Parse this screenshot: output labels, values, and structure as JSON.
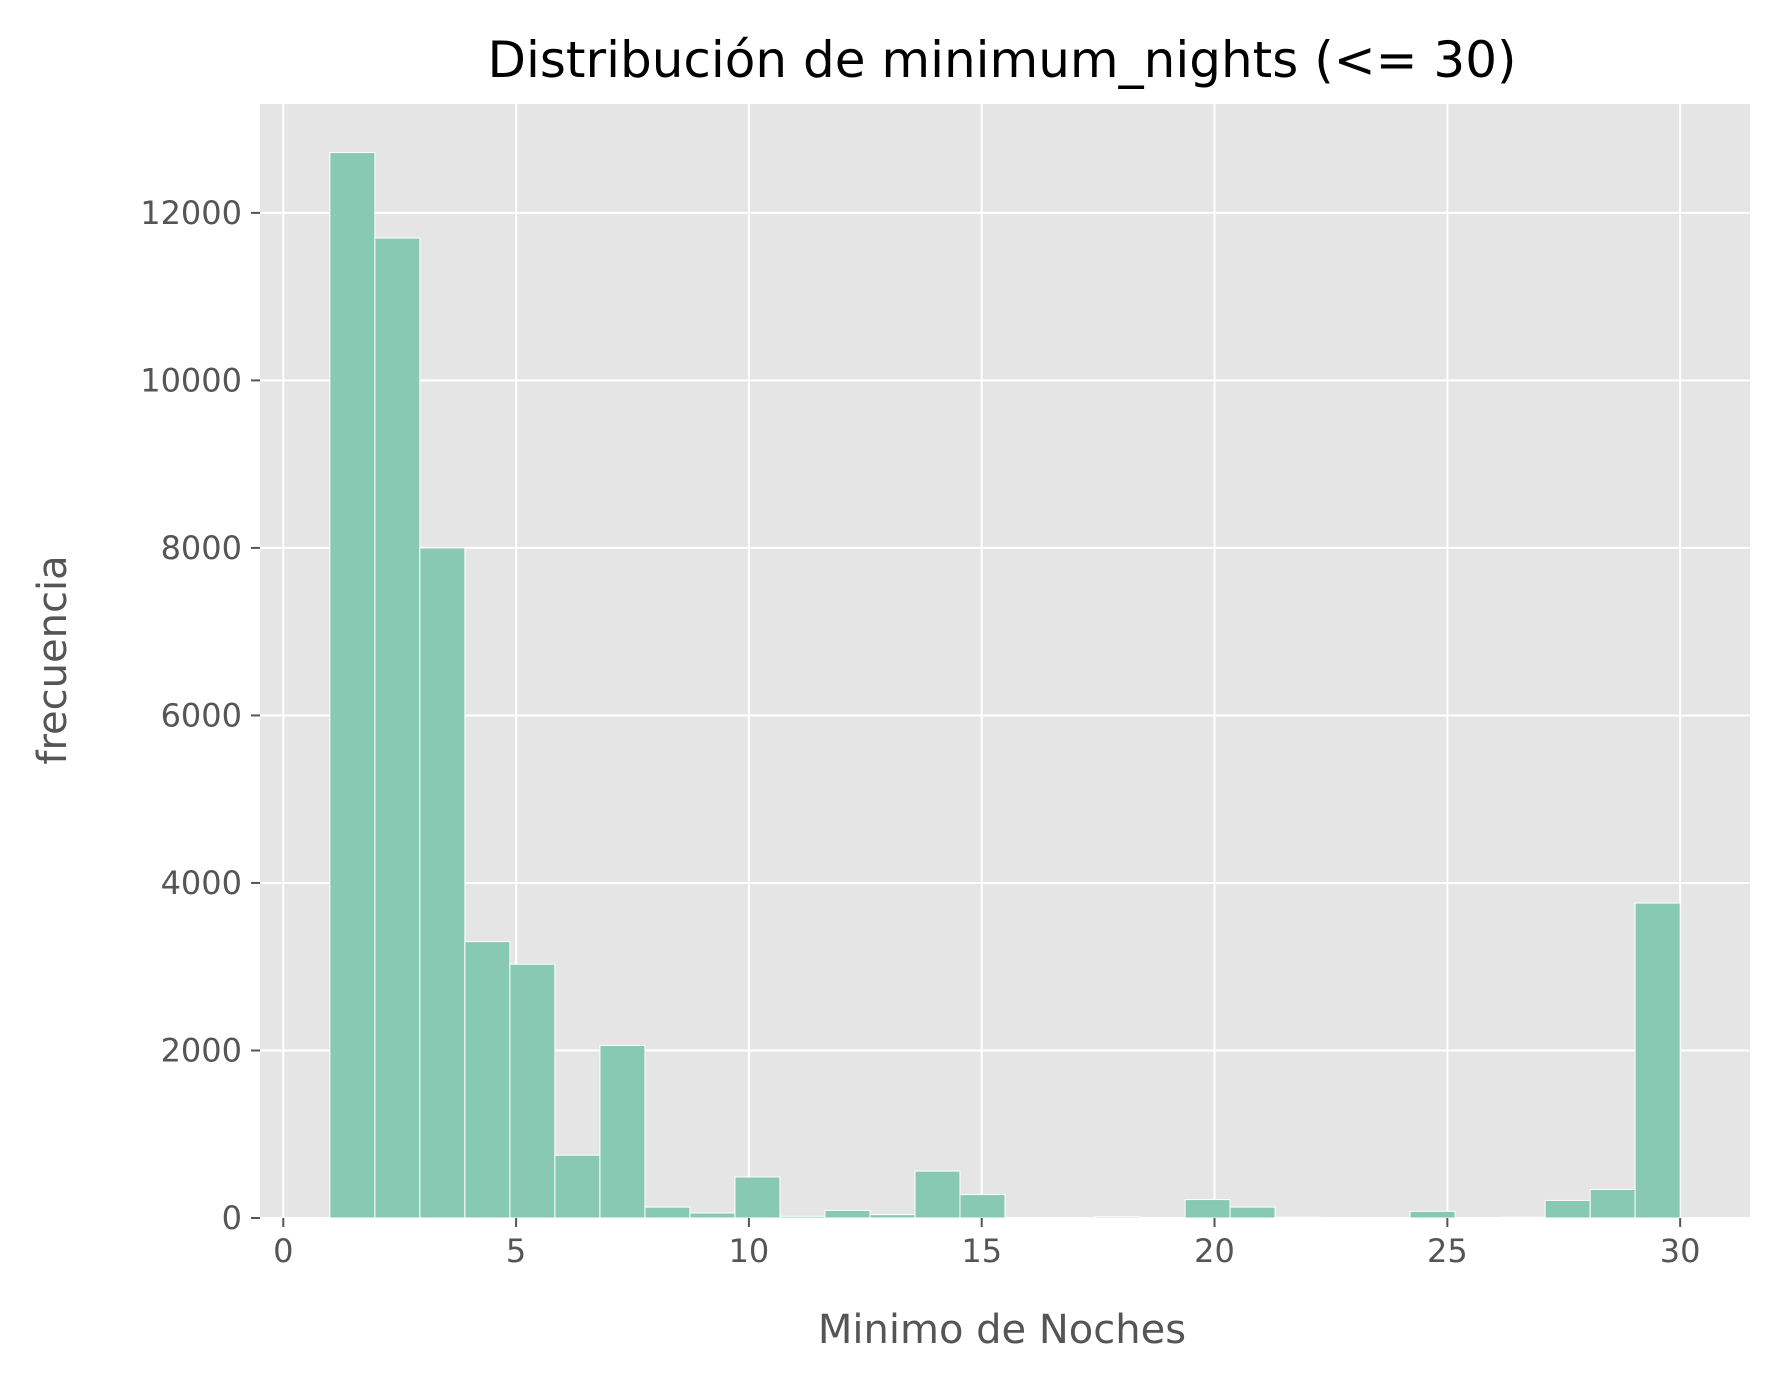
{
  "chart_data": {
    "type": "bar",
    "title": "Distribución de minimum_nights (<= 30)",
    "xlabel": "Minimo de Noches",
    "ylabel": "frecuencia",
    "xlim": [
      -0.5,
      31.5
    ],
    "ylim": [
      0,
      13300
    ],
    "xticks": [
      0,
      5,
      10,
      15,
      20,
      25,
      30
    ],
    "yticks": [
      0,
      2000,
      4000,
      6000,
      8000,
      10000,
      12000
    ],
    "grid": true,
    "bar_color": "#88c9b3",
    "background_color": "#e5e5e5",
    "bins": [
      {
        "x0": 1.0,
        "x1": 1.967,
        "value": 12720
      },
      {
        "x0": 1.967,
        "x1": 2.933,
        "value": 11700
      },
      {
        "x0": 2.933,
        "x1": 3.9,
        "value": 8000
      },
      {
        "x0": 3.9,
        "x1": 4.867,
        "value": 3300
      },
      {
        "x0": 4.867,
        "x1": 5.833,
        "value": 3030
      },
      {
        "x0": 5.833,
        "x1": 6.8,
        "value": 750
      },
      {
        "x0": 6.8,
        "x1": 7.767,
        "value": 2060
      },
      {
        "x0": 7.767,
        "x1": 8.733,
        "value": 130
      },
      {
        "x0": 8.733,
        "x1": 9.7,
        "value": 60
      },
      {
        "x0": 9.7,
        "x1": 10.667,
        "value": 490
      },
      {
        "x0": 10.667,
        "x1": 11.633,
        "value": 20
      },
      {
        "x0": 11.633,
        "x1": 12.6,
        "value": 90
      },
      {
        "x0": 12.6,
        "x1": 13.567,
        "value": 40
      },
      {
        "x0": 13.567,
        "x1": 14.533,
        "value": 560
      },
      {
        "x0": 14.533,
        "x1": 15.5,
        "value": 280
      },
      {
        "x0": 15.5,
        "x1": 16.467,
        "value": 5
      },
      {
        "x0": 16.467,
        "x1": 17.433,
        "value": 5
      },
      {
        "x0": 17.433,
        "x1": 18.4,
        "value": 15
      },
      {
        "x0": 18.4,
        "x1": 19.367,
        "value": 5
      },
      {
        "x0": 19.367,
        "x1": 20.333,
        "value": 220
      },
      {
        "x0": 20.333,
        "x1": 21.3,
        "value": 130
      },
      {
        "x0": 21.3,
        "x1": 22.267,
        "value": 10
      },
      {
        "x0": 22.267,
        "x1": 23.233,
        "value": 5
      },
      {
        "x0": 23.233,
        "x1": 24.2,
        "value": 5
      },
      {
        "x0": 24.2,
        "x1": 25.167,
        "value": 80
      },
      {
        "x0": 25.167,
        "x1": 26.133,
        "value": 5
      },
      {
        "x0": 26.133,
        "x1": 27.1,
        "value": 10
      },
      {
        "x0": 27.1,
        "x1": 28.067,
        "value": 210
      },
      {
        "x0": 28.067,
        "x1": 29.033,
        "value": 340
      },
      {
        "x0": 29.033,
        "x1": 30.0,
        "value": 3760
      }
    ]
  }
}
